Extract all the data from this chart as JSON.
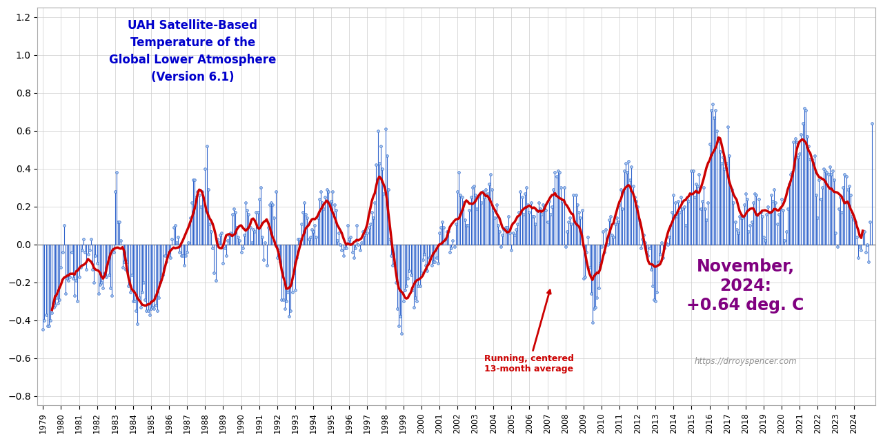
{
  "title_line1": "UAH Satellite-Based",
  "title_line2": "Temperature of the",
  "title_line3": "Global Lower Atmosphere",
  "title_line4": "(Version 6.1)",
  "title_color": "#0000CC",
  "annotation_text": "Running, centered\n13-month average",
  "annotation_color": "#CC0000",
  "note_text": "November,\n2024:\n+0.64 deg. C",
  "note_color": "#800080",
  "url_text": "https://drroyspencer.com",
  "url_color": "#909090",
  "background_color": "#FFFFFF",
  "grid_color": "#CCCCCC",
  "line_color": "#3366CC",
  "smooth_color": "#CC0000",
  "ylim": [
    -0.85,
    1.25
  ],
  "yticks": [
    -0.8,
    -0.6,
    -0.4,
    -0.2,
    0.0,
    0.2,
    0.4,
    0.6,
    0.8,
    1.0,
    1.2
  ],
  "monthly_data": [
    -0.45,
    -0.4,
    -0.37,
    -0.43,
    -0.43,
    -0.4,
    -0.36,
    -0.33,
    -0.32,
    -0.28,
    -0.31,
    -0.29,
    -0.12,
    -0.04,
    0.1,
    -0.26,
    -0.18,
    -0.19,
    -0.17,
    -0.04,
    -0.18,
    -0.27,
    -0.19,
    -0.3,
    -0.17,
    -0.12,
    -0.03,
    0.03,
    -0.04,
    -0.13,
    -0.05,
    -0.03,
    0.03,
    -0.13,
    -0.2,
    -0.06,
    -0.1,
    -0.26,
    -0.21,
    -0.2,
    -0.23,
    -0.15,
    -0.17,
    -0.1,
    -0.16,
    -0.23,
    -0.27,
    -0.04,
    0.28,
    0.38,
    0.12,
    0.12,
    0.02,
    -0.12,
    -0.09,
    -0.13,
    -0.09,
    -0.22,
    -0.25,
    -0.16,
    -0.3,
    -0.3,
    -0.35,
    -0.42,
    -0.28,
    -0.33,
    -0.25,
    -0.2,
    -0.29,
    -0.35,
    -0.35,
    -0.37,
    -0.34,
    -0.33,
    -0.34,
    -0.32,
    -0.35,
    -0.28,
    -0.2,
    -0.16,
    -0.16,
    -0.06,
    -0.09,
    -0.06,
    -0.04,
    -0.07,
    0.03,
    0.09,
    0.1,
    0.01,
    0.04,
    -0.04,
    -0.06,
    -0.06,
    -0.11,
    -0.06,
    -0.04,
    0.01,
    0.14,
    0.22,
    0.34,
    0.34,
    0.25,
    0.28,
    0.26,
    0.2,
    0.28,
    0.24,
    0.4,
    0.52,
    0.29,
    0.11,
    0.07,
    -0.02,
    -0.15,
    -0.19,
    0.03,
    0.01,
    0.05,
    0.06,
    -0.1,
    -0.02,
    -0.06,
    0.02,
    0.05,
    0.06,
    0.16,
    0.19,
    0.17,
    0.09,
    0.04,
    0.02,
    -0.04,
    -0.02,
    0.05,
    0.22,
    0.18,
    0.16,
    0.09,
    0.01,
    0.08,
    0.07,
    0.17,
    0.17,
    0.24,
    0.3,
    0.04,
    -0.08,
    0.01,
    -0.11,
    0.09,
    0.21,
    0.22,
    0.21,
    0.14,
    0.28,
    -0.07,
    -0.03,
    -0.09,
    -0.29,
    -0.29,
    -0.34,
    -0.3,
    -0.25,
    -0.38,
    -0.35,
    -0.25,
    -0.15,
    -0.24,
    -0.07,
    0.03,
    0.03,
    0.11,
    0.17,
    0.22,
    0.16,
    0.14,
    0.03,
    0.04,
    0.08,
    0.07,
    0.1,
    0.04,
    0.14,
    0.24,
    0.28,
    0.22,
    0.19,
    0.25,
    0.29,
    0.28,
    0.22,
    0.23,
    0.28,
    0.21,
    0.18,
    0.02,
    0.06,
    0.0,
    -0.03,
    -0.06,
    -0.02,
    -0.02,
    0.1,
    0.03,
    0.04,
    -0.04,
    -0.07,
    -0.02,
    0.1,
    0.0,
    -0.03,
    0.01,
    0.07,
    0.05,
    0.08,
    0.06,
    0.09,
    0.11,
    0.17,
    0.14,
    0.22,
    0.42,
    0.6,
    0.43,
    0.52,
    0.4,
    0.27,
    0.61,
    0.47,
    0.29,
    0.03,
    -0.06,
    -0.11,
    -0.1,
    -0.2,
    -0.34,
    -0.43,
    -0.38,
    -0.47,
    -0.3,
    -0.24,
    -0.22,
    -0.18,
    -0.14,
    -0.16,
    -0.24,
    -0.33,
    -0.28,
    -0.3,
    -0.22,
    -0.22,
    -0.15,
    -0.08,
    -0.05,
    -0.11,
    -0.14,
    -0.07,
    -0.07,
    -0.11,
    -0.09,
    -0.09,
    -0.07,
    -0.1,
    0.06,
    0.09,
    0.12,
    0.09,
    0.03,
    0.07,
    0.07,
    -0.04,
    -0.02,
    0.02,
    -0.01,
    0.11,
    0.28,
    0.38,
    0.26,
    0.25,
    0.22,
    0.13,
    0.1,
    0.1,
    0.18,
    0.25,
    0.3,
    0.31,
    0.26,
    0.19,
    0.25,
    0.27,
    0.22,
    0.28,
    0.25,
    0.29,
    0.27,
    0.32,
    0.37,
    0.29,
    0.18,
    0.14,
    0.21,
    0.1,
    0.07,
    -0.01,
    0.05,
    0.08,
    0.09,
    0.09,
    0.15,
    0.06,
    -0.03,
    0.06,
    0.05,
    0.08,
    0.11,
    0.17,
    0.28,
    0.25,
    0.16,
    0.27,
    0.3,
    0.21,
    0.17,
    0.22,
    0.15,
    0.15,
    0.11,
    0.18,
    0.22,
    0.19,
    0.16,
    0.21,
    0.19,
    0.18,
    0.12,
    0.23,
    0.16,
    0.2,
    0.29,
    0.38,
    0.36,
    0.39,
    0.38,
    0.3,
    0.23,
    0.3,
    -0.01,
    0.07,
    0.12,
    0.14,
    0.11,
    0.26,
    0.12,
    0.26,
    0.21,
    0.17,
    0.14,
    0.18,
    -0.18,
    -0.17,
    -0.04,
    0.04,
    -0.12,
    -0.26,
    -0.41,
    -0.34,
    -0.33,
    -0.28,
    -0.23,
    -0.1,
    -0.01,
    0.07,
    -0.04,
    0.08,
    0.0,
    0.13,
    0.15,
    0.05,
    0.04,
    0.11,
    0.14,
    0.12,
    0.21,
    0.29,
    0.19,
    0.39,
    0.43,
    0.38,
    0.44,
    0.34,
    0.41,
    0.31,
    0.25,
    0.23,
    0.2,
    0.13,
    -0.02,
    0.03,
    0.05,
    0.01,
    -0.04,
    -0.06,
    -0.02,
    -0.13,
    -0.22,
    -0.29,
    -0.3,
    -0.25,
    -0.09,
    -0.05,
    0.01,
    -0.07,
    -0.02,
    0.01,
    0.0,
    0.04,
    0.1,
    0.17,
    0.26,
    0.22,
    0.15,
    0.23,
    0.17,
    0.25,
    0.19,
    0.2,
    0.1,
    0.24,
    0.23,
    0.26,
    0.39,
    0.39,
    0.25,
    0.32,
    0.31,
    0.37,
    0.19,
    0.23,
    0.3,
    0.19,
    0.13,
    0.22,
    0.53,
    0.71,
    0.74,
    0.67,
    0.71,
    0.6,
    0.55,
    0.49,
    0.43,
    0.46,
    0.4,
    0.43,
    0.62,
    0.47,
    0.3,
    0.29,
    0.22,
    0.12,
    0.08,
    0.06,
    0.15,
    0.14,
    0.14,
    0.21,
    0.27,
    0.24,
    0.07,
    0.1,
    0.12,
    0.22,
    0.27,
    0.26,
    0.16,
    0.24,
    0.17,
    0.15,
    0.04,
    0.02,
    0.16,
    0.2,
    0.17,
    0.26,
    0.23,
    0.29,
    0.22,
    0.11,
    0.16,
    0.19,
    0.24,
    0.18,
    0.02,
    0.07,
    0.19,
    0.32,
    0.37,
    0.38,
    0.54,
    0.56,
    0.54,
    0.46,
    0.48,
    0.58,
    0.64,
    0.72,
    0.71,
    0.57,
    0.52,
    0.45,
    0.45,
    0.43,
    0.47,
    0.26,
    0.14,
    0.34,
    0.24,
    0.3,
    0.4,
    0.39,
    0.38,
    0.37,
    0.41,
    0.37,
    0.39,
    0.34,
    0.06,
    -0.01,
    0.19,
    0.25,
    0.17,
    0.3,
    0.37,
    0.36,
    0.29,
    0.31,
    0.26,
    0.15,
    0.13,
    0.12,
    0.04,
    -0.07,
    -0.01,
    -0.03,
    0.06,
    0.07,
    -0.04,
    0.0,
    -0.09,
    0.12,
    0.64
  ],
  "start_year": 1979,
  "start_month": 1
}
